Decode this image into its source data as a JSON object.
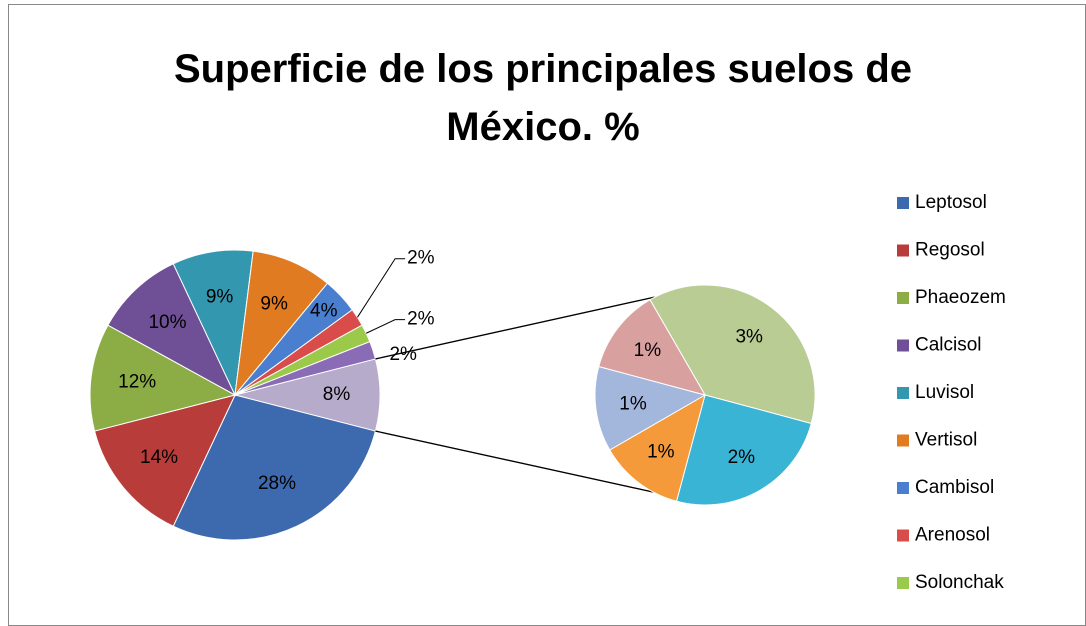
{
  "chart_data": {
    "type": "pie-of-pie",
    "title": "Superficie de los principales suelos de México. %",
    "categories": [
      "Leptosol",
      "Regosol",
      "Phaeozem",
      "Calcisol",
      "Luvisol",
      "Vertisol",
      "Cambisol",
      "Arenosol",
      "Solonchak",
      null
    ],
    "values": [
      28,
      14,
      12,
      10,
      9,
      9,
      4,
      2,
      2,
      2
    ],
    "value_labels": [
      "28%",
      "14%",
      "12%",
      "10%",
      "9%",
      "9%",
      "4%",
      "2%",
      "2%",
      "2%"
    ],
    "colors": [
      "#3d6aaf",
      "#b83c3a",
      "#8cad45",
      "#6f4f95",
      "#3497b0",
      "#e07b22",
      "#4a7fd0",
      "#d94c4a",
      "#9bc94a",
      "#8a6bb5"
    ],
    "other_value": 8,
    "other_value_label": "8%",
    "other_color": "#b7abcc",
    "secondary_categories": [
      null,
      null,
      null,
      null,
      null
    ],
    "secondary_values": [
      3,
      2,
      1,
      1,
      1
    ],
    "secondary_value_labels": [
      "3%",
      "2%",
      "1%",
      "1%",
      "1%"
    ],
    "secondary_colors": [
      "#b9cc93",
      "#3ab4d4",
      "#f59a3a",
      "#a3b6dc",
      "#d9a0a0"
    ],
    "legend": "right"
  }
}
